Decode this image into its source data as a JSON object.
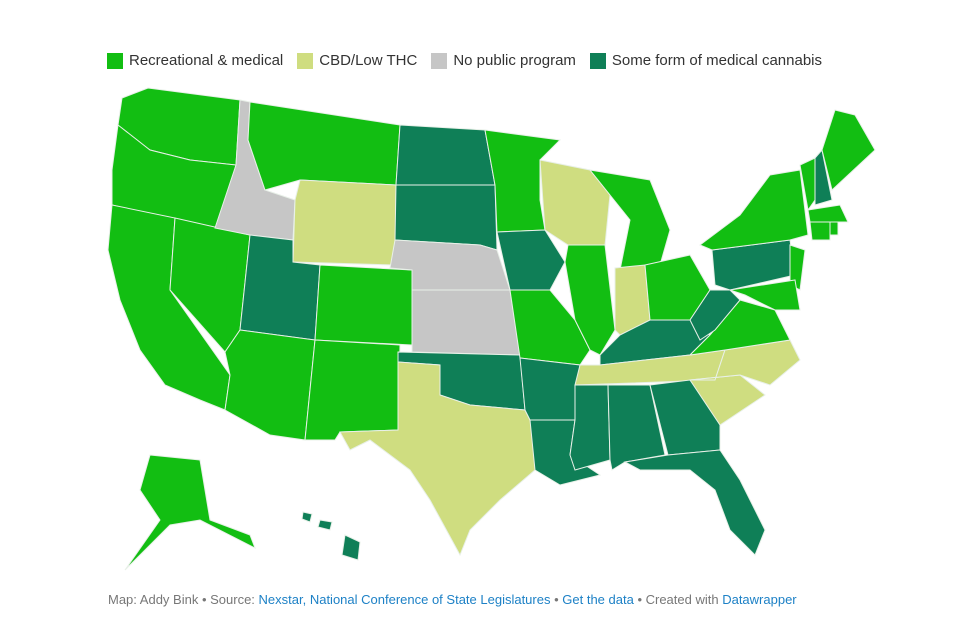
{
  "legend": [
    {
      "key": "rec",
      "label": "Recreational & medical",
      "color": "#12be12"
    },
    {
      "key": "cbd",
      "label": "CBD/Low THC",
      "color": "#cfdd80"
    },
    {
      "key": "none",
      "label": "No public program",
      "color": "#c6c6c6"
    },
    {
      "key": "med",
      "label": "Some form of medical cannabis",
      "color": "#0f7f57"
    }
  ],
  "states": {
    "WA": "rec",
    "OR": "rec",
    "CA": "rec",
    "NV": "rec",
    "ID": "none",
    "MT": "rec",
    "WY": "cbd",
    "UT": "med",
    "CO": "rec",
    "AZ": "rec",
    "NM": "rec",
    "ND": "med",
    "SD": "med",
    "NE": "none",
    "KS": "none",
    "OK": "med",
    "TX": "cbd",
    "MN": "rec",
    "IA": "med",
    "MO": "rec",
    "AR": "med",
    "LA": "med",
    "WI": "cbd",
    "IL": "rec",
    "MI": "rec",
    "IN": "cbd",
    "OH": "rec",
    "KY": "med",
    "TN": "cbd",
    "MS": "med",
    "AL": "med",
    "GA": "med",
    "FL": "med",
    "SC": "cbd",
    "NC": "cbd",
    "VA": "rec",
    "WV": "med",
    "PA": "med",
    "NY": "rec",
    "NJ": "rec",
    "MD": "rec",
    "VT": "rec",
    "NH": "med",
    "ME": "rec",
    "MA": "rec",
    "CT": "rec",
    "RI": "rec",
    "AK": "rec",
    "HI": "med"
  },
  "footer": {
    "credit": "Map: Addy Bink",
    "sep": " • ",
    "source_label": "Source: ",
    "source_link": "Nexstar, National Conference of State Legislatures",
    "get_data": "Get the data",
    "created_label": "Created with ",
    "created_link": "Datawrapper"
  }
}
